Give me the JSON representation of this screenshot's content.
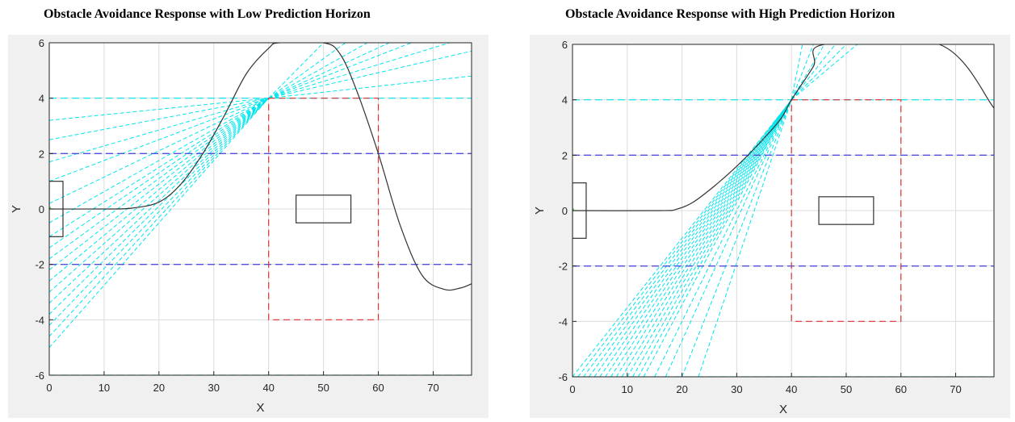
{
  "chart_data": [
    {
      "type": "line",
      "title": "Obstacle Avoidance Response with Low Prediction Horizon",
      "xlabel": "X",
      "ylabel": "Y",
      "xlim": [
        0,
        77
      ],
      "ylim": [
        -6,
        6
      ],
      "xticks": [
        0,
        10,
        20,
        30,
        40,
        50,
        60,
        70
      ],
      "yticks": [
        -6,
        -4,
        -2,
        0,
        2,
        4,
        6
      ],
      "grid": true,
      "colors": {
        "trajectory": "#333333",
        "prediction": "#00e5ee",
        "lane": "#5050e0",
        "safe_zone": "#e03030",
        "start_marker": "#00cc00"
      },
      "trajectory": [
        [
          0,
          0
        ],
        [
          10,
          0
        ],
        [
          15,
          0.03
        ],
        [
          20,
          0.25
        ],
        [
          24,
          0.9
        ],
        [
          28,
          2.0
        ],
        [
          32,
          3.4
        ],
        [
          36,
          4.9
        ],
        [
          40,
          5.8
        ],
        [
          42,
          6.0
        ],
        [
          50,
          6.0
        ],
        [
          53,
          5.6
        ],
        [
          56,
          4.3
        ],
        [
          60,
          2.0
        ],
        [
          64,
          -0.6
        ],
        [
          68,
          -2.4
        ],
        [
          72,
          -2.9
        ],
        [
          75,
          -2.85
        ],
        [
          77,
          -2.7
        ]
      ],
      "lane_lines": [
        -2,
        2
      ],
      "boundary_lines": [
        -6,
        4
      ],
      "safe_zone": {
        "x": [
          40,
          60
        ],
        "y": [
          -4,
          4
        ]
      },
      "obstacle": {
        "x": [
          45,
          55
        ],
        "y": [
          -0.5,
          0.5
        ]
      },
      "vehicle": {
        "x": [
          0,
          2.5
        ],
        "y": [
          -1,
          1
        ]
      },
      "start_point": [
        0,
        0
      ],
      "prediction_fans": [
        {
          "apex": [
            40,
            4
          ],
          "y_at_x0": [
            -5,
            -4.6,
            -4.2,
            -3.8,
            -3.4,
            -3,
            -2.6,
            -2.2,
            -1.8,
            -1.4,
            -1,
            -0.5,
            0.2,
            1.0,
            1.7,
            2.5,
            3.2
          ],
          "right_targets": [
            [
              77,
              4.8
            ],
            [
              77,
              5.7
            ],
            [
              73,
              6
            ],
            [
              66,
              6
            ],
            [
              62,
              6
            ],
            [
              58,
              6
            ],
            [
              54,
              6
            ],
            [
              50,
              6
            ]
          ]
        }
      ]
    },
    {
      "type": "line",
      "title": "Obstacle Avoidance Response with High Prediction Horizon",
      "xlabel": "X",
      "ylabel": "Y",
      "xlim": [
        0,
        77
      ],
      "ylim": [
        -6,
        6
      ],
      "xticks": [
        0,
        10,
        20,
        30,
        40,
        50,
        60,
        70
      ],
      "yticks": [
        -6,
        -4,
        -2,
        0,
        2,
        4,
        6
      ],
      "grid": true,
      "colors": {
        "trajectory": "#333333",
        "prediction": "#00e5ee",
        "lane": "#5050e0",
        "safe_zone": "#e03030",
        "start_marker": "#00cc00"
      },
      "trajectory": [
        [
          0,
          0
        ],
        [
          16,
          0
        ],
        [
          19,
          0.05
        ],
        [
          22,
          0.3
        ],
        [
          26,
          0.9
        ],
        [
          30,
          1.6
        ],
        [
          34,
          2.4
        ],
        [
          38,
          3.3
        ],
        [
          40,
          4.0
        ],
        [
          44,
          5.2
        ],
        [
          46,
          6.0
        ],
        [
          67,
          6.0
        ],
        [
          77,
          3.7
        ]
      ],
      "lane_lines": [
        -2,
        2
      ],
      "boundary_lines": [
        -6,
        4
      ],
      "safe_zone": {
        "x": [
          40,
          60
        ],
        "y": [
          -4,
          4
        ]
      },
      "obstacle": {
        "x": [
          45,
          55
        ],
        "y": [
          -0.5,
          0.5
        ]
      },
      "vehicle": {
        "x": [
          0,
          2.5
        ],
        "y": [
          -1,
          1
        ]
      },
      "start_point": [
        0,
        0
      ],
      "prediction_fans": [
        {
          "apex": [
            40,
            4
          ],
          "bottom_x": [
            0,
            1,
            2,
            3,
            4,
            5,
            6,
            7,
            8,
            9,
            10,
            11,
            12,
            13,
            15,
            17,
            20,
            23
          ],
          "right_targets": [
            [
              42,
              6
            ],
            [
              44,
              6
            ],
            [
              46,
              6
            ],
            [
              48,
              6
            ],
            [
              50,
              6
            ],
            [
              52,
              6
            ]
          ]
        }
      ]
    }
  ]
}
